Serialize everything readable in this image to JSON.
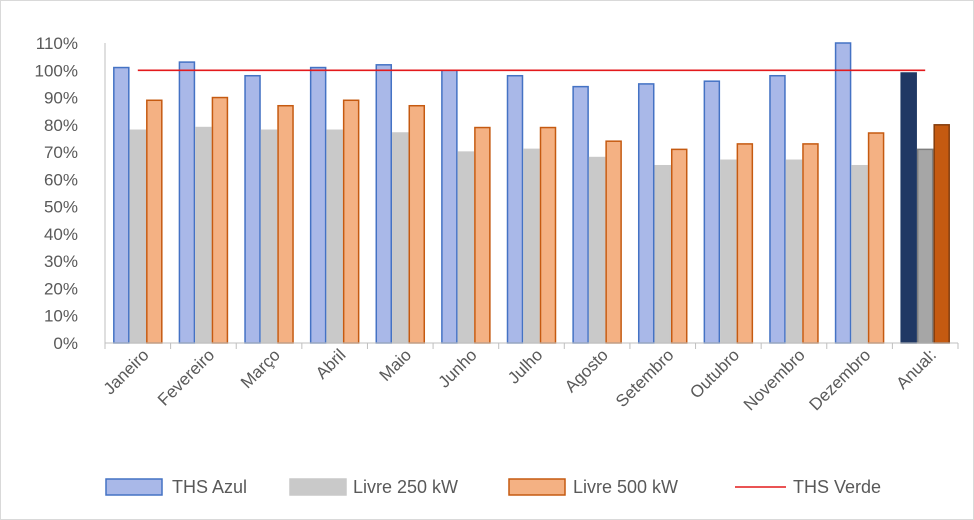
{
  "chart_data": {
    "type": "bar",
    "categories": [
      "Janeiro",
      "Fevereiro",
      "Março",
      "Abril",
      "Maio",
      "Junho",
      "Julho",
      "Agosto",
      "Setembro",
      "Outubro",
      "Novembro",
      "Dezembro",
      "Anual:"
    ],
    "series": [
      {
        "name": "THS Azul",
        "type": "bar",
        "values": [
          101,
          103,
          98,
          101,
          102,
          100,
          98,
          94,
          95,
          96,
          98,
          110,
          99
        ],
        "fill": "#a9b8e8",
        "stroke": "#4472c4",
        "highlight_last": {
          "fill": "#203864",
          "stroke": "#1f3864"
        }
      },
      {
        "name": "Livre 250 kW",
        "type": "bar",
        "values": [
          78,
          79,
          78,
          78,
          77,
          70,
          71,
          68,
          65,
          67,
          67,
          65,
          71
        ],
        "fill": "#c9c9c9",
        "stroke": "#c9c9c9",
        "highlight_last": {
          "fill": "#a6a6a6",
          "stroke": "#7f7f7f"
        }
      },
      {
        "name": "Livre 500 kW",
        "type": "bar",
        "values": [
          89,
          90,
          87,
          89,
          87,
          79,
          79,
          74,
          71,
          73,
          73,
          77,
          80
        ],
        "fill": "#f4b183",
        "stroke": "#c55a11",
        "highlight_last": {
          "fill": "#c55a11",
          "stroke": "#843c0c"
        }
      },
      {
        "name": "THS Verde",
        "type": "line",
        "value": 100,
        "color": "#e31a1c"
      }
    ],
    "y_ticks": [
      "0%",
      "10%",
      "20%",
      "30%",
      "40%",
      "50%",
      "60%",
      "70%",
      "80%",
      "90%",
      "100%",
      "110%"
    ],
    "ylim": [
      0,
      110
    ],
    "grid": false,
    "legend_position": "bottom"
  }
}
